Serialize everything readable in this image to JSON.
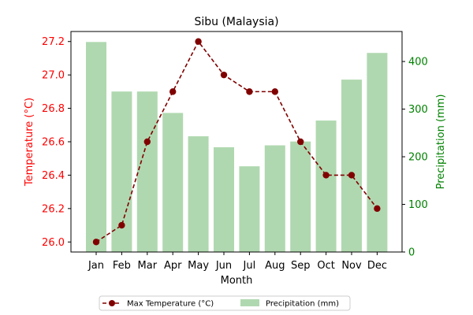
{
  "chart_data": {
    "type": "bar+line",
    "title": "Sibu (Malaysia)",
    "xlabel": "Month",
    "categories": [
      "Jan",
      "Feb",
      "Mar",
      "Apr",
      "May",
      "Jun",
      "Jul",
      "Aug",
      "Sep",
      "Oct",
      "Nov",
      "Dec"
    ],
    "temperature": {
      "name": "Max Temperature (°C)",
      "axis_label": "Temperature (°C)",
      "values": [
        26.0,
        26.1,
        26.6,
        26.9,
        27.2,
        27.0,
        26.9,
        26.9,
        26.6,
        26.4,
        26.4,
        26.2
      ],
      "ylim": [
        25.94,
        27.26
      ],
      "ticks": [
        26.0,
        26.2,
        26.4,
        26.6,
        26.8,
        27.0,
        27.2
      ],
      "tick_labels": [
        "26.0",
        "26.2",
        "26.4",
        "26.6",
        "26.8",
        "27.0",
        "27.2"
      ],
      "color": "#800000",
      "axis_color": "#ff0000"
    },
    "precipitation": {
      "name": "Precipitation (mm)",
      "axis_label": "Precipitation (mm)",
      "values": [
        441,
        337,
        337,
        292,
        243,
        220,
        180,
        224,
        232,
        276,
        362,
        418
      ],
      "ylim": [
        0,
        463
      ],
      "ticks": [
        0,
        100,
        200,
        300,
        400
      ],
      "tick_labels": [
        "0",
        "100",
        "200",
        "300",
        "400"
      ],
      "color": "#b0d8b0",
      "axis_color": "#008000"
    },
    "legend_placement": "bottom-center",
    "grid": false
  }
}
